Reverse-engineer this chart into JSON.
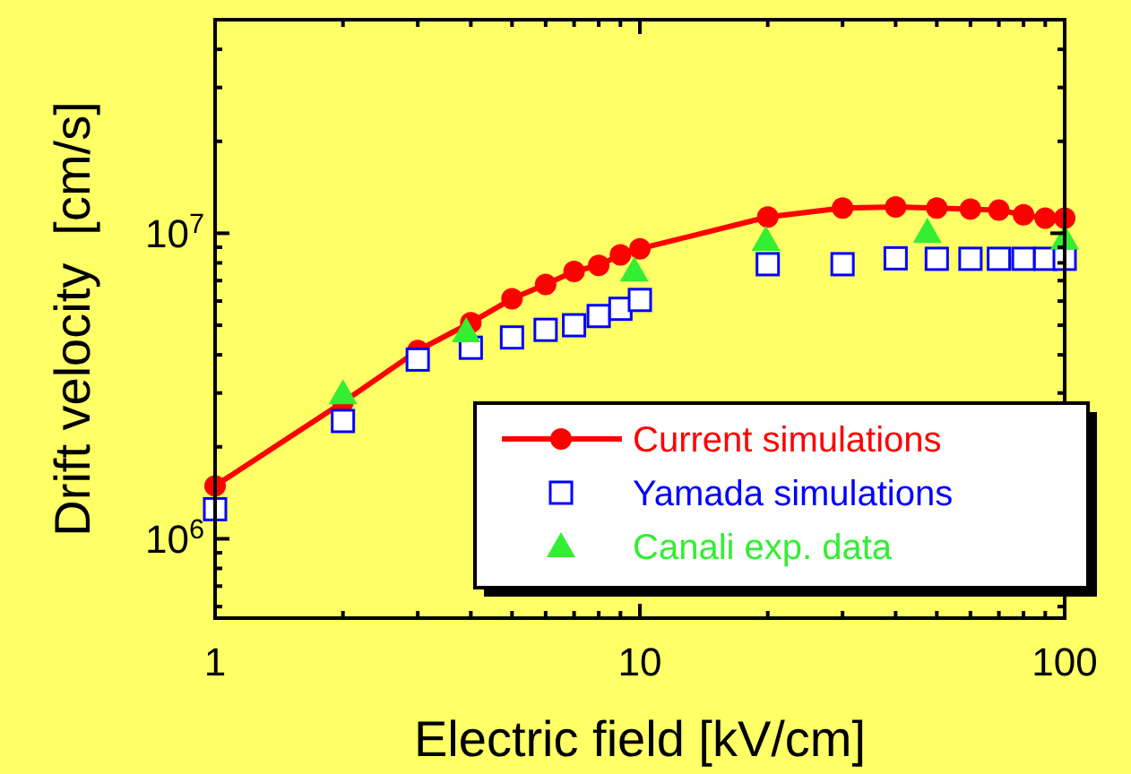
{
  "chart_data": {
    "type": "line",
    "xlabel": "Electric field [kV/cm]",
    "ylabel": "Drift velocity  [cm/s]",
    "log": "xy",
    "grid": false,
    "legend": "bottom right",
    "xlim": [
      1,
      100
    ],
    "ylim": [
      550000,
      50000000
    ],
    "xticks": [
      1,
      {
        "value": 2,
        "label": null
      },
      {
        "value": 3,
        "label": null
      },
      {
        "value": 4,
        "label": null
      },
      {
        "value": 5,
        "label": null
      },
      {
        "value": 6,
        "label": null
      },
      {
        "value": 7,
        "label": null
      },
      {
        "value": 8,
        "label": null
      },
      {
        "value": 9,
        "label": null
      },
      10,
      {
        "value": 20,
        "label": null
      },
      {
        "value": 30,
        "label": null
      },
      {
        "value": 40,
        "label": null
      },
      {
        "value": 50,
        "label": null
      },
      {
        "value": 60,
        "label": null
      },
      {
        "value": 70,
        "label": null
      },
      {
        "value": 80,
        "label": null
      },
      {
        "value": 90,
        "label": null
      },
      100
    ],
    "yticks": [
      {
        "value": 600000,
        "label": null
      },
      {
        "value": 700000,
        "label": null
      },
      {
        "value": 800000,
        "label": null
      },
      {
        "value": 900000,
        "label": null
      },
      {
        "value": 1000000,
        "label": "10$^{6}$"
      },
      {
        "value": 2000000,
        "label": null
      },
      {
        "value": 3000000,
        "label": null
      },
      {
        "value": 4000000,
        "label": null
      },
      {
        "value": 5000000,
        "label": null
      },
      {
        "value": 6000000,
        "label": null
      },
      {
        "value": 7000000,
        "label": null
      },
      {
        "value": 8000000,
        "label": null
      },
      {
        "value": 9000000,
        "label": null
      },
      {
        "value": 10000000,
        "label": "10$^{7}$"
      },
      {
        "value": 20000000,
        "label": null
      },
      {
        "value": 30000000,
        "label": null
      },
      {
        "value": 40000000,
        "label": null
      },
      {
        "value": 50000000,
        "label": null
      }
    ],
    "series": [
      {
        "name": "Current simulations",
        "marker": "circle",
        "line_style": "solid",
        "color": "#ff0000",
        "x": [
          1,
          2,
          3,
          4,
          5,
          6,
          7,
          8,
          9,
          10,
          20,
          30,
          40,
          50,
          60,
          70,
          80,
          90,
          100
        ],
        "values": [
          1490000,
          2800000,
          4130000,
          5100000,
          6100000,
          6800000,
          7500000,
          7850000,
          8500000,
          8900000,
          11300000,
          12100000,
          12200000,
          12100000,
          12000000,
          11900000,
          11500000,
          11200000,
          11200000
        ]
      },
      {
        "name": "Yamada simulations",
        "type": "scatter",
        "marker": "square",
        "color": "#0000ff",
        "x": [
          1,
          2,
          3,
          4,
          5,
          6,
          7,
          8,
          9,
          10,
          20,
          30,
          40,
          50,
          60,
          70,
          80,
          90,
          100
        ],
        "values": [
          1250000,
          2430000,
          3860000,
          4220000,
          4560000,
          4830000,
          5000000,
          5360000,
          5660000,
          6050000,
          7920000,
          7920000,
          8280000,
          8250000,
          8250000,
          8250000,
          8250000,
          8250000,
          8250000
        ]
      },
      {
        "name": "Canali exp. data",
        "type": "scatter",
        "marker": "triangle",
        "color": "#33ee33",
        "x": [
          2,
          3.9,
          9.7,
          19.8,
          47.5,
          100
        ],
        "values": [
          2990000,
          4770000,
          7540000,
          9500000,
          10100000,
          9600000
        ]
      }
    ]
  }
}
